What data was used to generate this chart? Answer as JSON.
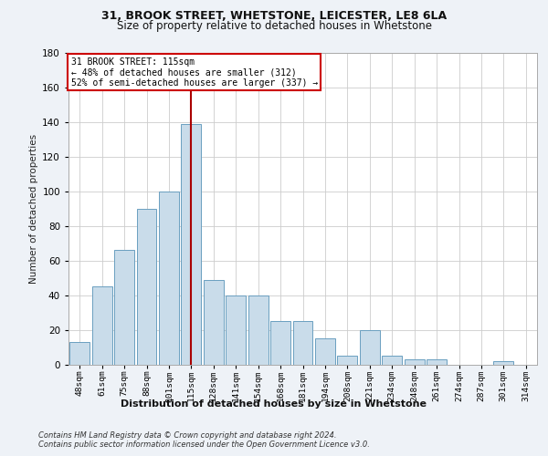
{
  "title1": "31, BROOK STREET, WHETSTONE, LEICESTER, LE8 6LA",
  "title2": "Size of property relative to detached houses in Whetstone",
  "xlabel": "Distribution of detached houses by size in Whetstone",
  "ylabel": "Number of detached properties",
  "categories": [
    "48sqm",
    "61sqm",
    "75sqm",
    "88sqm",
    "101sqm",
    "115sqm",
    "128sqm",
    "141sqm",
    "154sqm",
    "168sqm",
    "181sqm",
    "194sqm",
    "208sqm",
    "221sqm",
    "234sqm",
    "248sqm",
    "261sqm",
    "274sqm",
    "287sqm",
    "301sqm",
    "314sqm"
  ],
  "values": [
    13,
    45,
    66,
    90,
    100,
    139,
    49,
    40,
    40,
    25,
    25,
    15,
    5,
    20,
    5,
    3,
    3,
    0,
    0,
    2,
    0
  ],
  "highlight_index": 5,
  "bar_color": "#c9dcea",
  "bar_edge_color": "#6a9fc0",
  "highlight_line_color": "#aa0000",
  "annotation_text": "31 BROOK STREET: 115sqm\n← 48% of detached houses are smaller (312)\n52% of semi-detached houses are larger (337) →",
  "annotation_box_color": "#ffffff",
  "annotation_box_edge": "#cc0000",
  "ylim": [
    0,
    180
  ],
  "yticks": [
    0,
    20,
    40,
    60,
    80,
    100,
    120,
    140,
    160,
    180
  ],
  "footer1": "Contains HM Land Registry data © Crown copyright and database right 2024.",
  "footer2": "Contains public sector information licensed under the Open Government Licence v3.0.",
  "bg_color": "#eef2f7",
  "plot_bg_color": "#ffffff",
  "grid_color": "#cccccc"
}
